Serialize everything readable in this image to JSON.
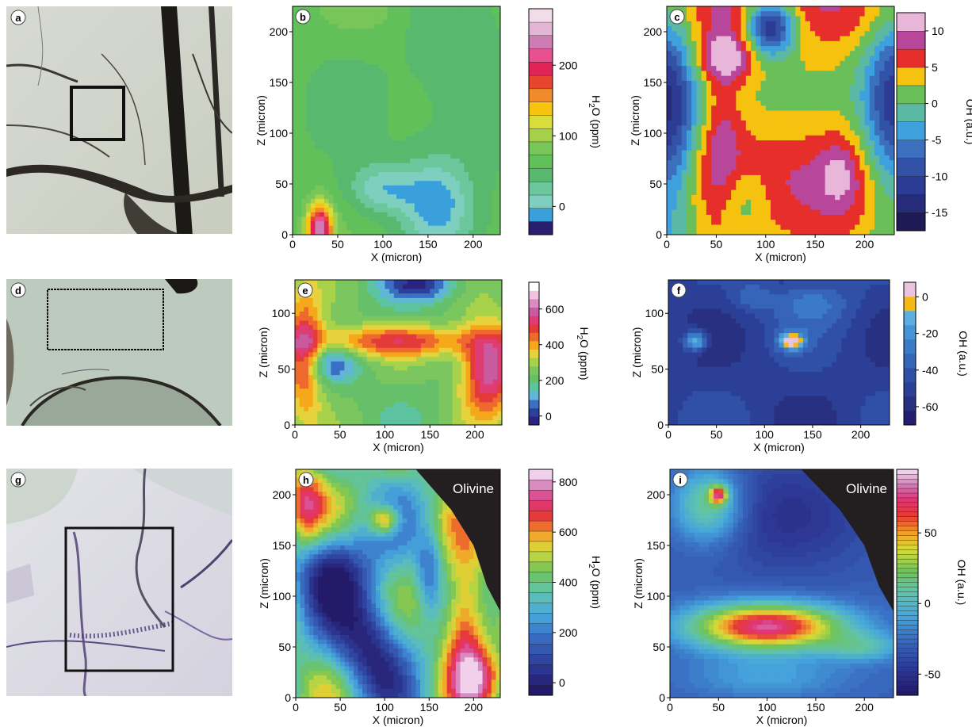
{
  "panel_letters": [
    "a",
    "b",
    "c",
    "d",
    "e",
    "f",
    "g",
    "h",
    "i"
  ],
  "axis_labels": {
    "x": "X (micron)",
    "z": "Z (micron)"
  },
  "colorbar_labels": {
    "h2o": "H2O (ppm)",
    "h2o_main": "H",
    "h2o_sub": "2",
    "h2o_rest": "O (ppm)",
    "oh": "OH (a.u.)"
  },
  "olivine_label": "Olivine",
  "colors": {
    "olivine": "#231f20",
    "frame": "#000000"
  },
  "chart_data": [
    {
      "panel": "b",
      "type": "heatmap",
      "quantity": "H2O (ppm)",
      "xlim": [
        0,
        230
      ],
      "ylim": [
        0,
        225
      ],
      "xticks": [
        "0",
        "50",
        "100",
        "150",
        "200"
      ],
      "yticks": [
        "0",
        "50",
        "100",
        "150",
        "200"
      ],
      "colorbar_ticks": [
        "0",
        "100",
        "200"
      ],
      "colorbar_range": [
        -40,
        280
      ],
      "dominant_values": "mostly 40-80 ppm; ~0 ppm at (100,45) and (160,30); ~200 ppm at (30,5)"
    },
    {
      "panel": "c",
      "type": "heatmap",
      "quantity": "OH (a.u.)",
      "xlim": [
        0,
        230
      ],
      "ylim": [
        0,
        225
      ],
      "xticks": [
        "0",
        "50",
        "100",
        "150",
        "200"
      ],
      "yticks": [
        "0",
        "50",
        "100",
        "150",
        "200"
      ],
      "colorbar_ticks": [
        "10",
        "5",
        "0",
        "-5",
        "-10",
        "-15"
      ],
      "colorbar_range": [
        -17.5,
        12.5
      ],
      "dominant_values": "central 4-6 band; max ~11 at (60,175); min ~-13 at (105,205)"
    },
    {
      "panel": "e",
      "type": "heatmap",
      "quantity": "H2O (ppm)",
      "xlim": [
        0,
        230
      ],
      "ylim": [
        0,
        130
      ],
      "xticks": [
        "0",
        "50",
        "100",
        "150",
        "200"
      ],
      "yticks": [
        "0",
        "50",
        "100"
      ],
      "colorbar_ticks": [
        "600",
        "400",
        "200",
        "0"
      ],
      "colorbar_range": [
        -50,
        750
      ],
      "dominant_values": "band ~450-500 ppm near z=75; max ~650 at (215,50); background ~200-300"
    },
    {
      "panel": "f",
      "type": "heatmap",
      "quantity": "OH (a.u.)",
      "xlim": [
        0,
        230
      ],
      "ylim": [
        0,
        130
      ],
      "xticks": [
        "0",
        "50",
        "100",
        "150",
        "200"
      ],
      "yticks": [
        "0",
        "50",
        "100"
      ],
      "colorbar_ticks": [
        "0",
        "-20",
        "-40",
        "-60"
      ],
      "colorbar_range": [
        -70,
        8
      ],
      "dominant_values": "background -40 to -60; peaks ~0 at (28,75) and (128,75)"
    },
    {
      "panel": "h",
      "type": "heatmap",
      "quantity": "H2O (ppm)",
      "xlim": [
        0,
        230
      ],
      "ylim": [
        0,
        225
      ],
      "xticks": [
        "0",
        "50",
        "100",
        "150",
        "200"
      ],
      "yticks": [
        "0",
        "50",
        "100",
        "150",
        "200"
      ],
      "colorbar_ticks": [
        "800",
        "600",
        "400",
        "200",
        "0"
      ],
      "colorbar_range": [
        -50,
        850
      ],
      "dominant_values": "lows ~0-100 at (40,130) and (85,55); highs ~700-800 near (190,75) and (100,175)"
    },
    {
      "panel": "i",
      "type": "heatmap",
      "quantity": "OH (a.u.)",
      "xlim": [
        0,
        230
      ],
      "ylim": [
        0,
        225
      ],
      "xticks": [
        "0",
        "50",
        "100",
        "150",
        "200"
      ],
      "yticks": [
        "0",
        "50",
        "100",
        "150",
        "200"
      ],
      "colorbar_ticks": [
        "50",
        "0",
        "-50"
      ],
      "colorbar_range": [
        -65,
        95
      ],
      "dominant_values": "high band ~70-80 at (100,70); spot ~60 at (50,200); background -30 to -50"
    }
  ]
}
